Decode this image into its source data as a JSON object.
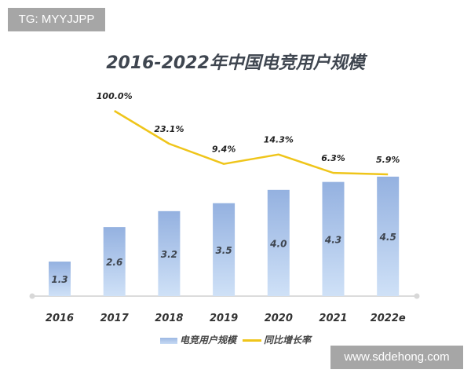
{
  "watermarks": {
    "top_left": "TG: MYYJJPP",
    "bottom_right": "www.sddehong.com"
  },
  "chart_data": {
    "type": "bar+line",
    "title": "2016-2022年中国电竞用户规模",
    "categories": [
      "2016",
      "2017",
      "2018",
      "2019",
      "2020",
      "2021",
      "2022e"
    ],
    "series": [
      {
        "name": "电竞用户规模",
        "type": "bar",
        "values": [
          1.3,
          2.6,
          3.2,
          3.5,
          4.0,
          4.3,
          4.5
        ],
        "labels": [
          "1.3",
          "2.6",
          "3.2",
          "3.5",
          "4.0",
          "4.3",
          "4.5"
        ],
        "color": "#9db8e3"
      },
      {
        "name": "同比增长率",
        "type": "line",
        "values": [
          null,
          100.0,
          23.1,
          9.4,
          14.3,
          6.3,
          5.9
        ],
        "labels": [
          "",
          "100.0%",
          "23.1%",
          "9.4%",
          "14.3%",
          "6.3%",
          "5.9%"
        ],
        "color": "#efc51a"
      }
    ],
    "xlabel": "",
    "ylabel": "",
    "grid": false,
    "legend": "bottom"
  }
}
